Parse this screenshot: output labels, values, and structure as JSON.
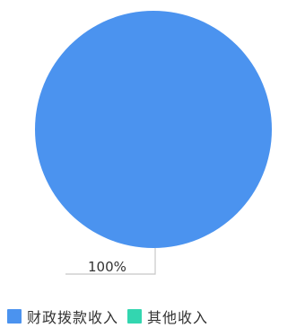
{
  "chart_data": {
    "type": "pie",
    "title": "",
    "series": [
      {
        "name": "财政拨款收入",
        "value": 100,
        "label": "100%",
        "color": "#4b93ef"
      },
      {
        "name": "其他收入",
        "value": 0,
        "label": "",
        "color": "#33d6b0"
      }
    ],
    "legend": {
      "position": "bottom-left",
      "items": [
        {
          "label": "财政拨款收入",
          "color": "#4b93ef"
        },
        {
          "label": "其他收入",
          "color": "#33d6b0"
        }
      ]
    }
  }
}
